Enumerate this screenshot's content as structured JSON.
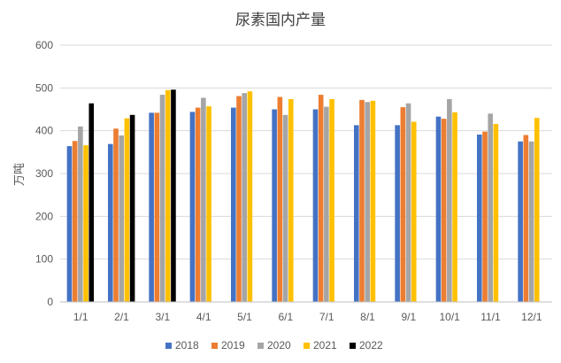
{
  "chart_data": {
    "type": "bar",
    "title": "尿素国内产量",
    "xlabel": "",
    "ylabel": "万吨",
    "ylim": [
      0,
      600
    ],
    "yticks": [
      0,
      100,
      200,
      300,
      400,
      500,
      600
    ],
    "grid": true,
    "legend_position": "bottom",
    "categories": [
      "1/1",
      "2/1",
      "3/1",
      "4/1",
      "5/1",
      "6/1",
      "7/1",
      "8/1",
      "9/1",
      "10/1",
      "11/1",
      "12/1"
    ],
    "series": [
      {
        "name": "2018",
        "color": "#4472C4",
        "values": [
          364,
          369,
          442,
          444,
          454,
          450,
          450,
          413,
          413,
          433,
          391,
          375
        ]
      },
      {
        "name": "2019",
        "color": "#ED7D31",
        "values": [
          376,
          405,
          442,
          454,
          481,
          479,
          484,
          472,
          455,
          428,
          398,
          390
        ]
      },
      {
        "name": "2020",
        "color": "#A5A5A5",
        "values": [
          410,
          389,
          484,
          477,
          488,
          437,
          456,
          467,
          464,
          474,
          440,
          375
        ]
      },
      {
        "name": "2021",
        "color": "#FFC000",
        "values": [
          366,
          429,
          495,
          457,
          492,
          474,
          474,
          470,
          421,
          443,
          416,
          430
        ]
      },
      {
        "name": "2022",
        "color": "#000000",
        "values": [
          464,
          437,
          496,
          null,
          null,
          null,
          null,
          null,
          null,
          null,
          null,
          null
        ]
      }
    ]
  }
}
